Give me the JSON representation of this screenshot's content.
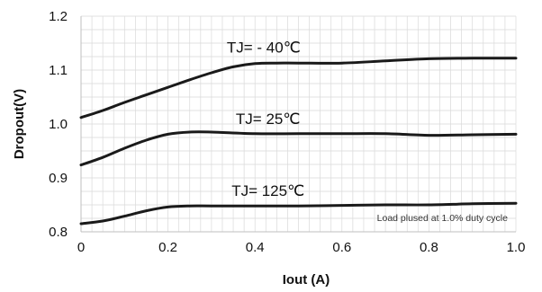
{
  "chart_data": {
    "type": "line",
    "xlabel": "Iout (A)",
    "ylabel": "Dropout(V)",
    "xlim": [
      0,
      1.0
    ],
    "ylim": [
      0.8,
      1.2
    ],
    "grid": true,
    "x_ticks": [
      "0",
      "0.2",
      "0.4",
      "0.6",
      "0.8",
      "1.0"
    ],
    "y_ticks": [
      "0.8",
      "0.9",
      "1.0",
      "1.1",
      "1.2"
    ],
    "annotation": "Load plused at 1.0% duty cycle",
    "series": [
      {
        "name": "TJ= - 40℃",
        "x": [
          0,
          0.05,
          0.1,
          0.15,
          0.2,
          0.25,
          0.3,
          0.35,
          0.4,
          0.45,
          0.5,
          0.6,
          0.7,
          0.8,
          0.9,
          1.0
        ],
        "y": [
          1.012,
          1.025,
          1.04,
          1.054,
          1.068,
          1.082,
          1.095,
          1.106,
          1.112,
          1.113,
          1.113,
          1.113,
          1.117,
          1.121,
          1.122,
          1.122
        ]
      },
      {
        "name": "TJ= 25℃",
        "x": [
          0,
          0.05,
          0.1,
          0.15,
          0.2,
          0.25,
          0.3,
          0.4,
          0.5,
          0.6,
          0.7,
          0.8,
          0.9,
          1.0
        ],
        "y": [
          0.924,
          0.938,
          0.955,
          0.97,
          0.981,
          0.985,
          0.985,
          0.982,
          0.982,
          0.982,
          0.982,
          0.979,
          0.98,
          0.981
        ]
      },
      {
        "name": "TJ= 125℃",
        "x": [
          0,
          0.05,
          0.1,
          0.15,
          0.2,
          0.25,
          0.3,
          0.4,
          0.5,
          0.6,
          0.7,
          0.8,
          0.9,
          1.0
        ],
        "y": [
          0.815,
          0.82,
          0.829,
          0.839,
          0.846,
          0.848,
          0.848,
          0.848,
          0.848,
          0.849,
          0.85,
          0.85,
          0.852,
          0.853
        ]
      }
    ],
    "colors": {
      "line": "#1a1a1a",
      "grid": "#d9d9d9",
      "axis": "#bfbfbf"
    }
  }
}
